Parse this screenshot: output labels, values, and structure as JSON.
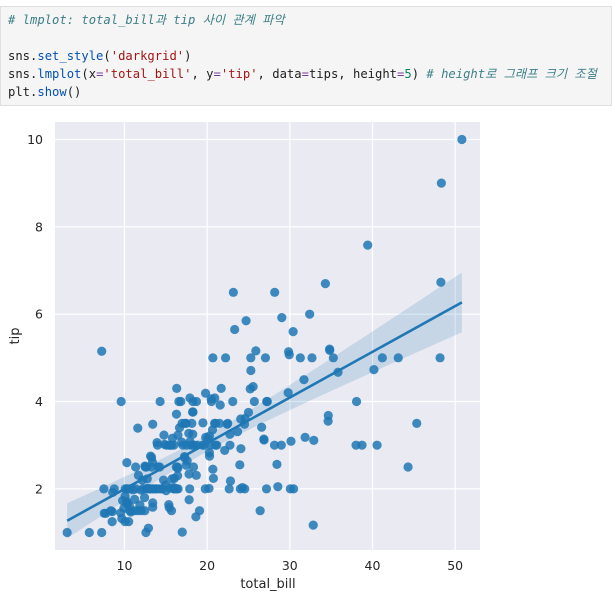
{
  "code": {
    "comment": "# lmplot: total_bill과 tip 사이 관계 파악",
    "line2": {
      "obj": "sns",
      "fn": "set_style",
      "arg": "'darkgrid'"
    },
    "line3": {
      "obj": "sns",
      "fn": "lmplot",
      "k1": "x",
      "v1": "'total_bill'",
      "k2": "y",
      "v2": "'tip'",
      "k3": "data",
      "v3": "tips",
      "k4": "height",
      "v4": "5",
      "comment": "# height로 그래프 크기 조절"
    },
    "line4": {
      "obj": "plt",
      "fn": "show"
    }
  },
  "chart_data": {
    "type": "scatter",
    "title": "",
    "xlabel": "total_bill",
    "ylabel": "tip",
    "xlim": [
      1.6,
      53.0
    ],
    "ylim": [
      0.6,
      10.4
    ],
    "xticks": [
      10,
      20,
      30,
      40,
      50
    ],
    "yticks": [
      2,
      4,
      6,
      8,
      10
    ],
    "grid": true,
    "style": "darkgrid",
    "point_color": "#1f77b4",
    "regression": {
      "x": [
        3.07,
        50.81
      ],
      "y": [
        1.27,
        6.27
      ],
      "ci_band": true
    },
    "points": [
      [
        16.99,
        1.01
      ],
      [
        10.34,
        1.66
      ],
      [
        21.01,
        3.5
      ],
      [
        23.68,
        3.31
      ],
      [
        24.59,
        3.61
      ],
      [
        25.29,
        4.71
      ],
      [
        8.77,
        2.0
      ],
      [
        26.88,
        3.12
      ],
      [
        15.04,
        1.96
      ],
      [
        14.78,
        3.23
      ],
      [
        10.27,
        1.71
      ],
      [
        35.26,
        5.0
      ],
      [
        15.42,
        1.57
      ],
      [
        18.43,
        3.0
      ],
      [
        14.83,
        3.02
      ],
      [
        21.58,
        3.92
      ],
      [
        10.33,
        1.67
      ],
      [
        16.29,
        3.71
      ],
      [
        16.97,
        3.5
      ],
      [
        20.65,
        3.35
      ],
      [
        17.92,
        4.08
      ],
      [
        20.29,
        2.75
      ],
      [
        15.77,
        2.23
      ],
      [
        39.42,
        7.58
      ],
      [
        19.82,
        3.18
      ],
      [
        17.81,
        2.34
      ],
      [
        13.37,
        2.0
      ],
      [
        12.69,
        2.0
      ],
      [
        21.7,
        4.3
      ],
      [
        19.65,
        3.0
      ],
      [
        9.55,
        1.45
      ],
      [
        18.35,
        2.5
      ],
      [
        15.06,
        3.0
      ],
      [
        20.69,
        2.45
      ],
      [
        17.78,
        3.27
      ],
      [
        24.06,
        3.6
      ],
      [
        16.31,
        2.0
      ],
      [
        16.93,
        3.07
      ],
      [
        18.69,
        2.31
      ],
      [
        31.27,
        5.0
      ],
      [
        16.04,
        2.24
      ],
      [
        17.46,
        2.54
      ],
      [
        13.94,
        3.06
      ],
      [
        9.68,
        1.32
      ],
      [
        30.4,
        5.6
      ],
      [
        18.29,
        3.0
      ],
      [
        22.23,
        5.0
      ],
      [
        32.4,
        6.0
      ],
      [
        28.55,
        2.05
      ],
      [
        18.04,
        3.0
      ],
      [
        12.54,
        2.5
      ],
      [
        10.29,
        2.6
      ],
      [
        34.81,
        5.2
      ],
      [
        9.94,
        1.56
      ],
      [
        25.56,
        4.34
      ],
      [
        19.49,
        3.51
      ],
      [
        38.01,
        3.0
      ],
      [
        26.41,
        1.5
      ],
      [
        11.24,
        1.76
      ],
      [
        48.27,
        6.73
      ],
      [
        20.29,
        3.21
      ],
      [
        13.81,
        2.0
      ],
      [
        11.02,
        1.98
      ],
      [
        18.29,
        3.76
      ],
      [
        17.59,
        2.64
      ],
      [
        20.08,
        3.15
      ],
      [
        16.45,
        2.47
      ],
      [
        3.07,
        1.0
      ],
      [
        20.23,
        2.01
      ],
      [
        15.01,
        2.09
      ],
      [
        12.02,
        1.97
      ],
      [
        17.07,
        3.0
      ],
      [
        26.86,
        3.14
      ],
      [
        25.28,
        5.0
      ],
      [
        14.73,
        2.2
      ],
      [
        10.51,
        1.25
      ],
      [
        17.92,
        3.08
      ],
      [
        27.2,
        4.0
      ],
      [
        22.76,
        3.0
      ],
      [
        17.29,
        2.71
      ],
      [
        19.44,
        3.0
      ],
      [
        16.66,
        3.4
      ],
      [
        10.07,
        1.83
      ],
      [
        32.68,
        5.0
      ],
      [
        15.98,
        2.03
      ],
      [
        34.83,
        5.17
      ],
      [
        13.03,
        2.0
      ],
      [
        18.28,
        4.0
      ],
      [
        24.71,
        5.85
      ],
      [
        21.16,
        3.0
      ],
      [
        28.97,
        3.0
      ],
      [
        22.49,
        3.5
      ],
      [
        5.75,
        1.0
      ],
      [
        16.32,
        4.3
      ],
      [
        22.75,
        3.25
      ],
      [
        40.17,
        4.73
      ],
      [
        27.28,
        4.0
      ],
      [
        12.03,
        1.5
      ],
      [
        21.01,
        3.0
      ],
      [
        12.46,
        1.5
      ],
      [
        11.35,
        2.5
      ],
      [
        15.38,
        3.0
      ],
      [
        44.3,
        2.5
      ],
      [
        22.42,
        3.48
      ],
      [
        20.92,
        4.08
      ],
      [
        15.36,
        1.64
      ],
      [
        20.49,
        4.06
      ],
      [
        25.21,
        4.29
      ],
      [
        18.24,
        3.76
      ],
      [
        14.31,
        4.0
      ],
      [
        14.0,
        3.0
      ],
      [
        7.25,
        1.0
      ],
      [
        38.07,
        4.0
      ],
      [
        23.95,
        2.55
      ],
      [
        25.71,
        4.0
      ],
      [
        17.31,
        3.5
      ],
      [
        29.93,
        5.07
      ],
      [
        10.65,
        1.5
      ],
      [
        12.43,
        1.8
      ],
      [
        24.08,
        2.92
      ],
      [
        11.69,
        2.31
      ],
      [
        13.42,
        1.68
      ],
      [
        14.26,
        2.5
      ],
      [
        15.95,
        2.0
      ],
      [
        12.48,
        2.52
      ],
      [
        29.8,
        4.2
      ],
      [
        8.52,
        1.48
      ],
      [
        14.52,
        2.0
      ],
      [
        11.38,
        2.0
      ],
      [
        22.82,
        2.18
      ],
      [
        19.08,
        1.5
      ],
      [
        20.27,
        2.83
      ],
      [
        11.17,
        1.5
      ],
      [
        12.26,
        2.0
      ],
      [
        18.26,
        3.25
      ],
      [
        8.51,
        1.25
      ],
      [
        10.33,
        2.0
      ],
      [
        14.15,
        2.0
      ],
      [
        16.0,
        2.0
      ],
      [
        13.16,
        2.75
      ],
      [
        17.47,
        3.5
      ],
      [
        34.3,
        6.7
      ],
      [
        41.19,
        5.0
      ],
      [
        27.05,
        5.0
      ],
      [
        16.43,
        2.3
      ],
      [
        8.35,
        1.5
      ],
      [
        18.64,
        1.36
      ],
      [
        11.87,
        1.63
      ],
      [
        9.78,
        1.73
      ],
      [
        7.51,
        2.0
      ],
      [
        14.07,
        2.5
      ],
      [
        13.13,
        2.0
      ],
      [
        17.26,
        2.74
      ],
      [
        24.55,
        2.0
      ],
      [
        19.77,
        2.0
      ],
      [
        29.85,
        5.14
      ],
      [
        48.17,
        5.0
      ],
      [
        25.0,
        3.75
      ],
      [
        13.39,
        2.61
      ],
      [
        16.49,
        2.0
      ],
      [
        21.5,
        3.5
      ],
      [
        12.66,
        2.5
      ],
      [
        16.21,
        2.0
      ],
      [
        13.81,
        2.0
      ],
      [
        17.51,
        3.0
      ],
      [
        24.52,
        3.48
      ],
      [
        20.76,
        2.24
      ],
      [
        31.71,
        4.5
      ],
      [
        10.59,
        1.61
      ],
      [
        10.63,
        2.0
      ],
      [
        50.81,
        10.0
      ],
      [
        15.81,
        3.16
      ],
      [
        7.25,
        5.15
      ],
      [
        31.85,
        3.18
      ],
      [
        16.82,
        4.0
      ],
      [
        32.9,
        3.11
      ],
      [
        17.89,
        2.0
      ],
      [
        14.48,
        2.0
      ],
      [
        9.6,
        4.0
      ],
      [
        34.63,
        3.55
      ],
      [
        34.65,
        3.68
      ],
      [
        23.33,
        5.65
      ],
      [
        45.35,
        3.5
      ],
      [
        23.17,
        6.5
      ],
      [
        40.55,
        3.0
      ],
      [
        20.69,
        5.0
      ],
      [
        20.9,
        3.5
      ],
      [
        30.46,
        2.0
      ],
      [
        18.15,
        3.5
      ],
      [
        23.1,
        4.0
      ],
      [
        15.69,
        1.5
      ],
      [
        19.81,
        4.19
      ],
      [
        28.44,
        2.56
      ],
      [
        15.48,
        2.02
      ],
      [
        16.58,
        4.0
      ],
      [
        7.56,
        1.44
      ],
      [
        10.34,
        2.0
      ],
      [
        43.11,
        5.0
      ],
      [
        13.0,
        2.0
      ],
      [
        13.51,
        2.0
      ],
      [
        18.71,
        4.0
      ],
      [
        12.74,
        2.01
      ],
      [
        13.0,
        2.0
      ],
      [
        16.4,
        2.5
      ],
      [
        20.53,
        4.0
      ],
      [
        16.47,
        3.23
      ],
      [
        26.59,
        3.41
      ],
      [
        38.73,
        3.0
      ],
      [
        24.27,
        2.03
      ],
      [
        12.76,
        2.23
      ],
      [
        30.06,
        2.0
      ],
      [
        25.89,
        5.16
      ],
      [
        48.33,
        9.0
      ],
      [
        13.27,
        2.5
      ],
      [
        28.17,
        6.5
      ],
      [
        12.9,
        1.1
      ],
      [
        28.15,
        3.0
      ],
      [
        11.59,
        1.5
      ],
      [
        7.74,
        1.44
      ],
      [
        30.14,
        3.09
      ],
      [
        12.16,
        2.2
      ],
      [
        13.42,
        3.48
      ],
      [
        8.58,
        1.92
      ],
      [
        15.98,
        3.0
      ],
      [
        13.42,
        1.58
      ],
      [
        16.27,
        2.5
      ],
      [
        10.09,
        2.0
      ],
      [
        20.45,
        3.0
      ],
      [
        13.28,
        2.72
      ],
      [
        22.12,
        2.88
      ],
      [
        24.01,
        2.0
      ],
      [
        15.69,
        3.0
      ],
      [
        11.61,
        3.39
      ],
      [
        10.77,
        1.47
      ],
      [
        15.53,
        3.0
      ],
      [
        10.07,
        1.25
      ],
      [
        12.6,
        1.0
      ],
      [
        32.83,
        1.17
      ],
      [
        35.83,
        4.67
      ],
      [
        29.03,
        5.92
      ],
      [
        27.18,
        2.0
      ],
      [
        22.67,
        2.0
      ],
      [
        17.82,
        1.75
      ],
      [
        18.78,
        3.0
      ]
    ]
  }
}
